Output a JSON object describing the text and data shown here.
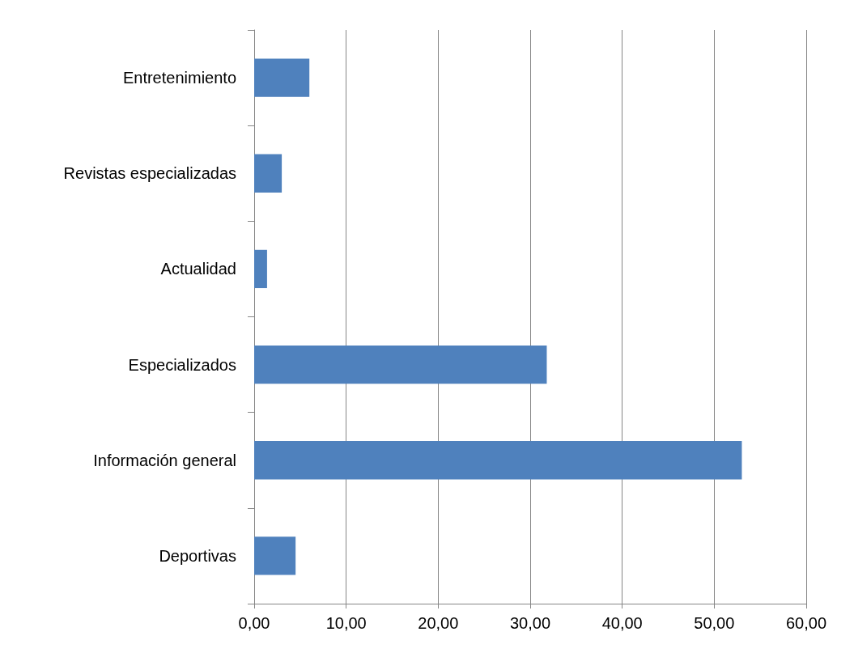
{
  "chart_data": {
    "type": "bar",
    "orientation": "horizontal",
    "categories": [
      "Entretenimiento",
      "Revistas especializadas",
      "Actualidad",
      "Especializados",
      "Información general",
      "Deportivas"
    ],
    "values": [
      6.0,
      3.0,
      1.4,
      31.8,
      53.0,
      4.5
    ],
    "color": "#4f81bd",
    "xlim": [
      0,
      60
    ],
    "xticks": [
      {
        "value": 0,
        "label": "0,00"
      },
      {
        "value": 10,
        "label": "10,00"
      },
      {
        "value": 20,
        "label": "20,00"
      },
      {
        "value": 30,
        "label": "30,00"
      },
      {
        "value": 40,
        "label": "40,00"
      },
      {
        "value": 50,
        "label": "50,00"
      },
      {
        "value": 60,
        "label": "60,00"
      }
    ],
    "grid": "x"
  }
}
